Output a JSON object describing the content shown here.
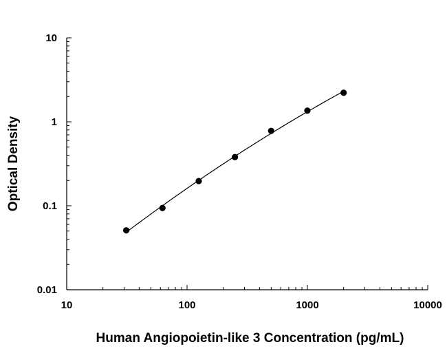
{
  "chart_data": {
    "type": "scatter",
    "title": "",
    "xlabel": "Human Angiopoietin-like 3 Concentration (pg/mL)",
    "ylabel": "Optical Density",
    "xscale": "log",
    "yscale": "log",
    "xlim": [
      10,
      10000
    ],
    "ylim": [
      0.01,
      10
    ],
    "x_ticks": [
      10,
      100,
      1000,
      10000
    ],
    "x_tick_labels": [
      "10",
      "100",
      "1000",
      "10000"
    ],
    "y_ticks": [
      0.01,
      0.1,
      1,
      10
    ],
    "y_tick_labels": [
      "0.01",
      "0.1",
      "1",
      "10"
    ],
    "grid": false,
    "legend": "none",
    "marker_color": "#000000",
    "fit_line": true,
    "series": [
      {
        "x": [
          31.25,
          62.5,
          125,
          250,
          500,
          1000,
          2000
        ],
        "y": [
          0.051,
          0.094,
          0.197,
          0.38,
          0.78,
          1.36,
          2.22
        ]
      }
    ]
  }
}
